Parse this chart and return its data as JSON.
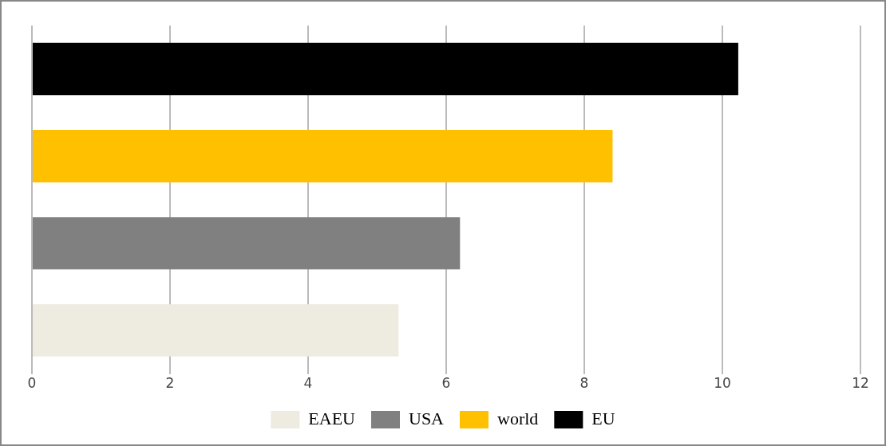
{
  "chart_data": {
    "type": "bar",
    "orientation": "horizontal",
    "categories": [
      null,
      null,
      null,
      null
    ],
    "series": [
      {
        "name": "EAEU",
        "color": "#eeebe0",
        "values": [
          null,
          null,
          null,
          5.31
        ]
      },
      {
        "name": "USA",
        "color": "#808080",
        "values": [
          null,
          null,
          6.2,
          null
        ]
      },
      {
        "name": "world",
        "color": "#ffc000",
        "values": [
          null,
          8.41,
          null,
          null
        ]
      },
      {
        "name": "EU",
        "color": "#000000",
        "values": [
          10.23,
          null,
          null,
          null
        ]
      }
    ],
    "xlim": [
      0,
      12
    ],
    "xticks": [
      0,
      2,
      4,
      6,
      8,
      10,
      12
    ],
    "grid": "x",
    "legend": "bottom",
    "tick_labels": "x"
  }
}
